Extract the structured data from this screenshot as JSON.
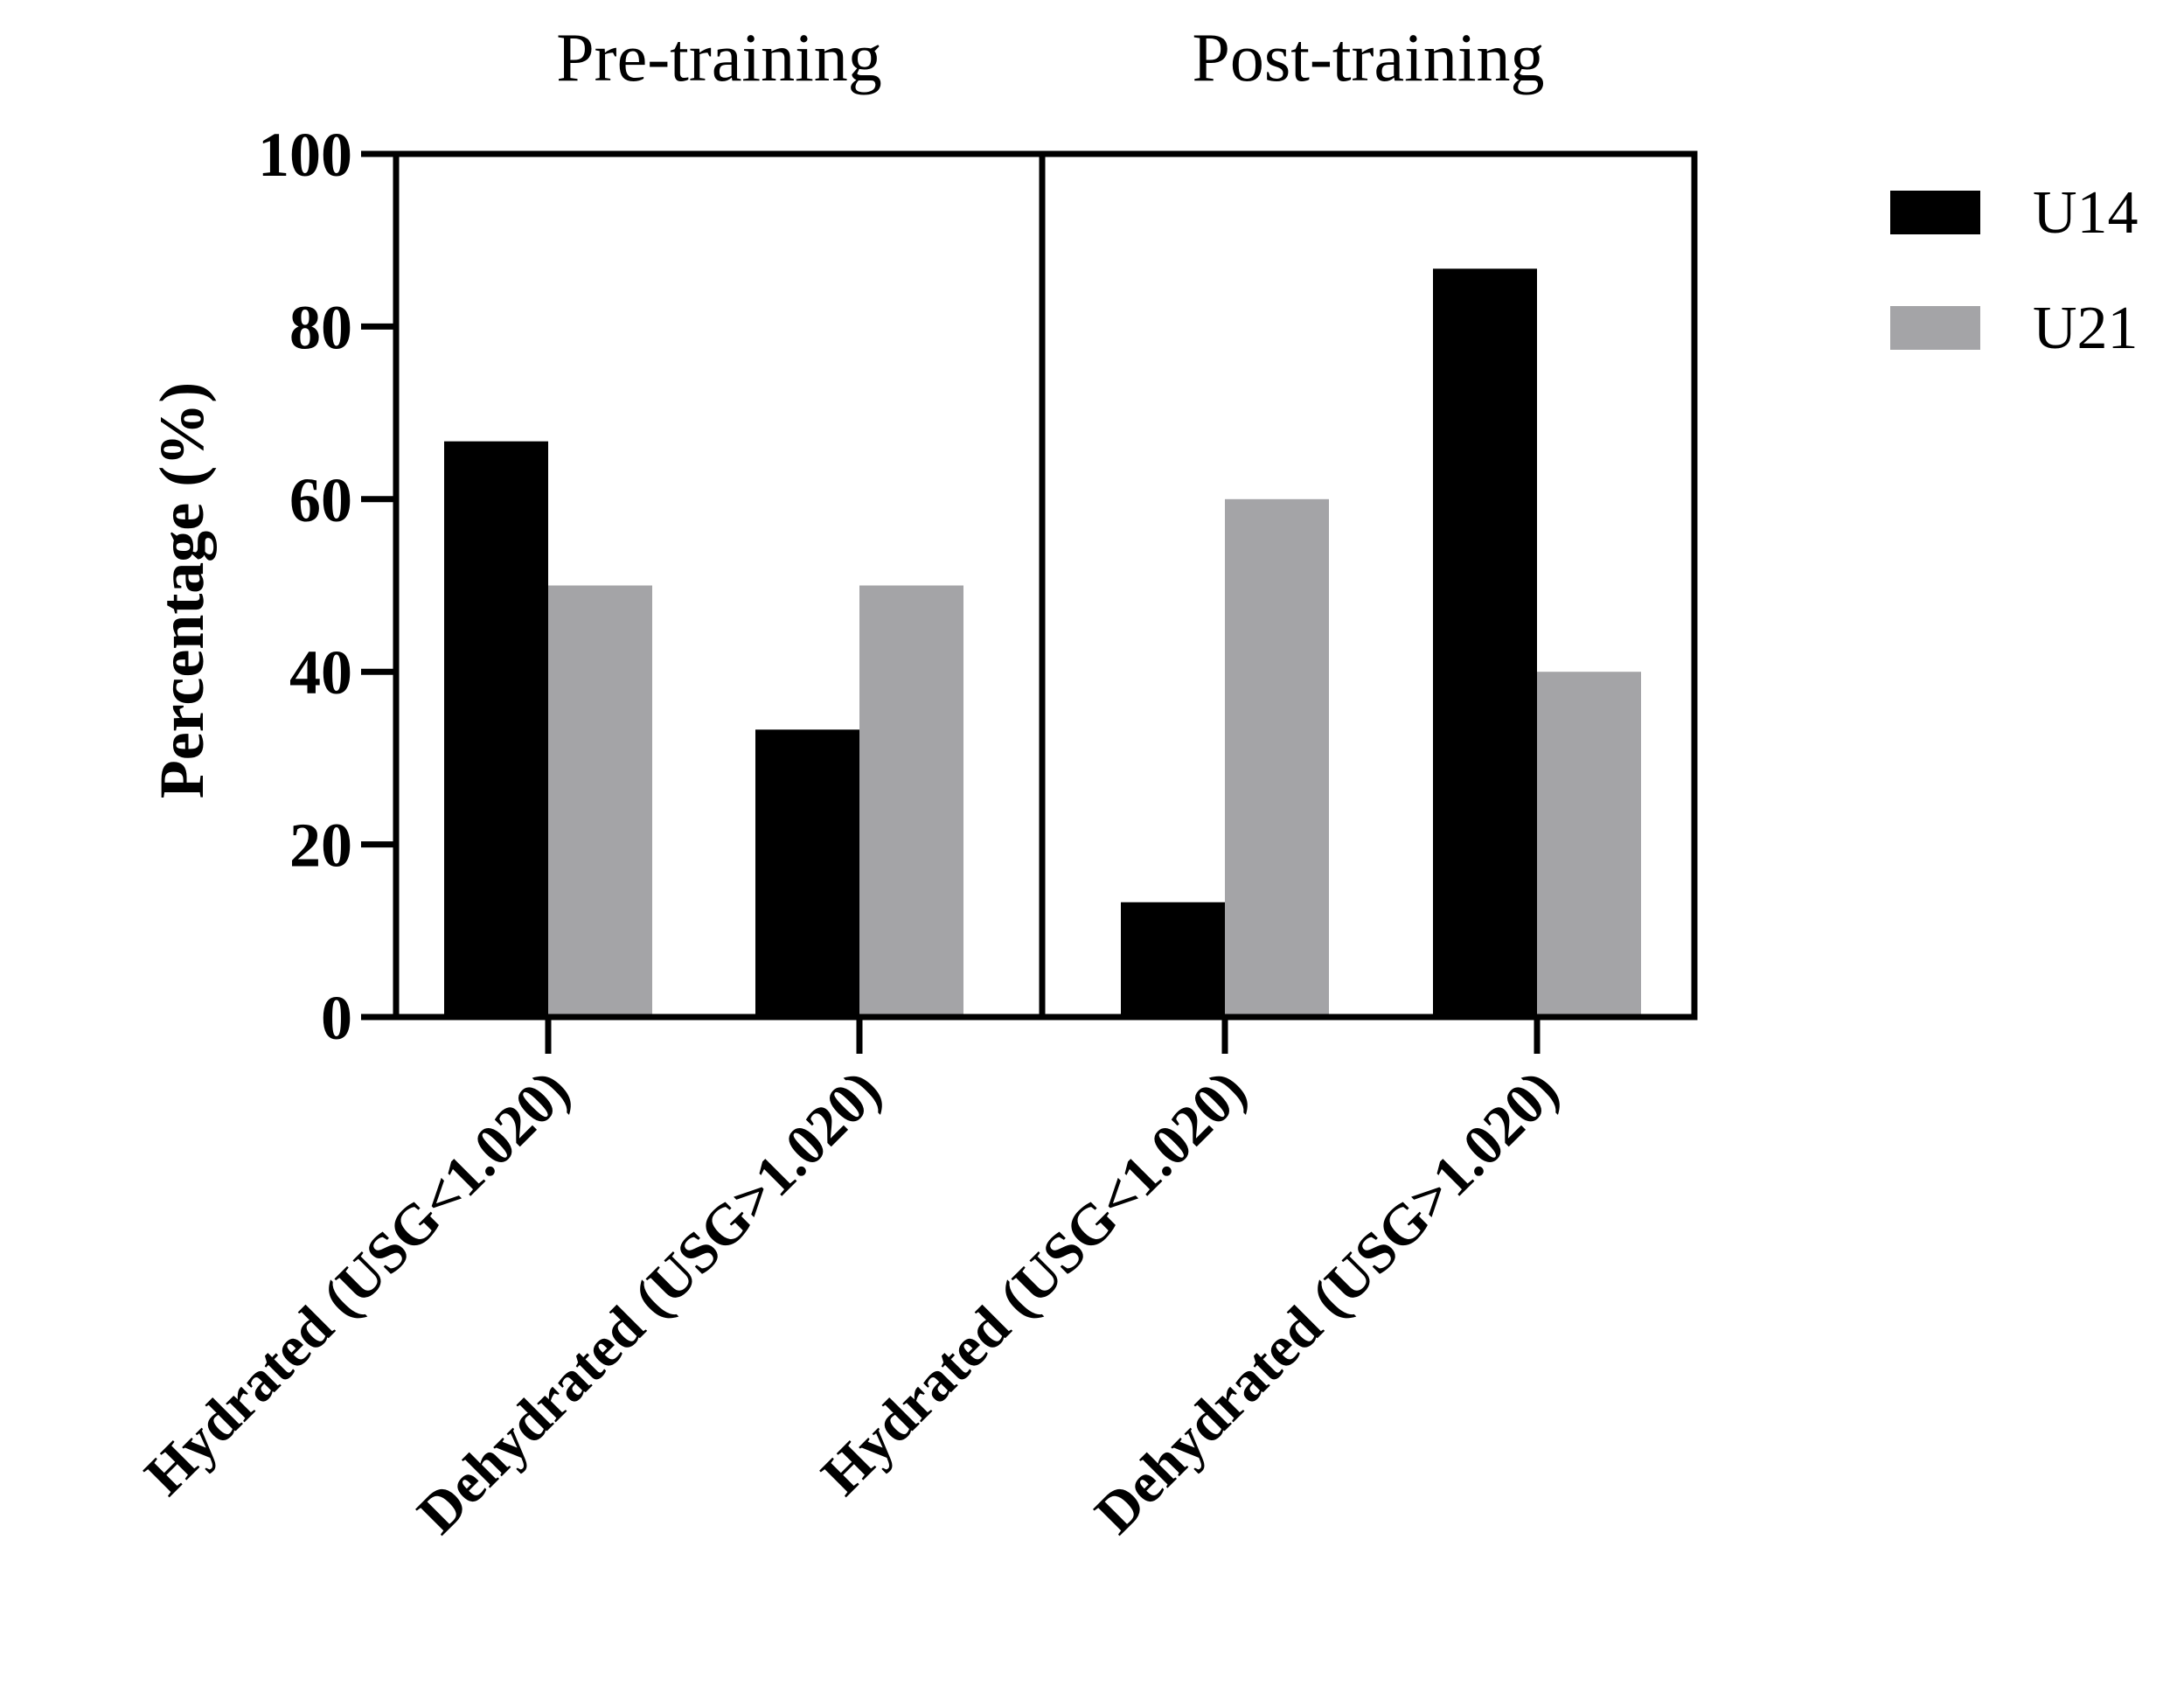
{
  "chart_data": {
    "type": "bar",
    "title": "",
    "xlabel": "",
    "ylabel": "Percentage (%)",
    "ylim": [
      0,
      100
    ],
    "yticks": [
      0,
      20,
      40,
      60,
      80,
      100
    ],
    "panels": [
      {
        "title": "Pre-training",
        "categories": [
          "Hydrated (USG<1.020)",
          "Dehydrated (USG>1.020)"
        ],
        "series": [
          {
            "name": "U14",
            "values": [
              66.7,
              33.3
            ]
          },
          {
            "name": "U21",
            "values": [
              50,
              50
            ]
          }
        ]
      },
      {
        "title": "Post-training",
        "categories": [
          "Hydrated (USG<1.020)",
          "Dehydrated (USG>1.020)"
        ],
        "series": [
          {
            "name": "U14",
            "values": [
              13.3,
              86.7
            ]
          },
          {
            "name": "U21",
            "values": [
              60,
              40
            ]
          }
        ]
      }
    ],
    "legend": {
      "position": "top-right",
      "entries": [
        {
          "name": "U14",
          "color": "#000000"
        },
        {
          "name": "U21",
          "color": "#a4a4a7"
        }
      ]
    },
    "grid": false
  }
}
